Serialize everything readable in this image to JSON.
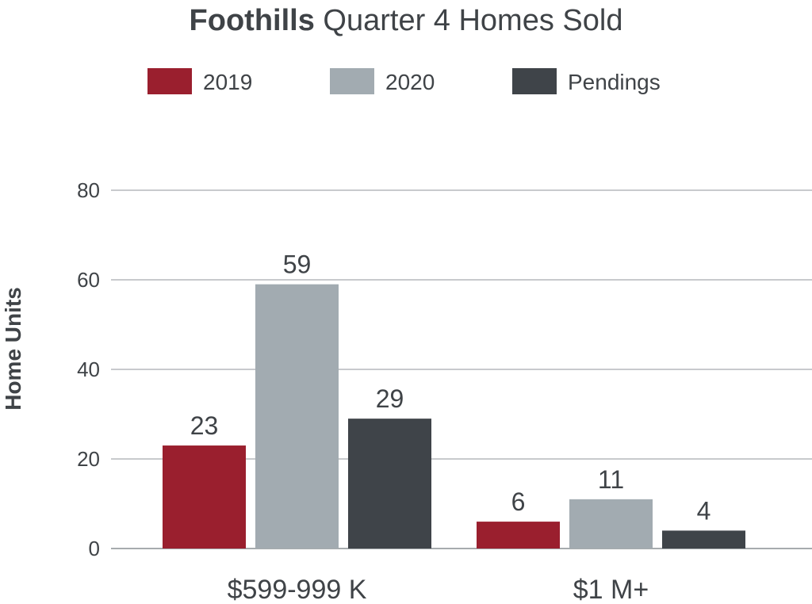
{
  "chart_data": {
    "type": "bar",
    "title_bold": "Foothills",
    "title_rest": " Quarter 4 Homes Sold",
    "ylabel": "Home Units",
    "xlabel": "",
    "ylim": [
      0,
      80
    ],
    "yticks": [
      "0",
      "20",
      "40",
      "60",
      "80"
    ],
    "grid": true,
    "legend_position": "top",
    "categories": [
      "$599-999 K",
      "$1 M+"
    ],
    "series": [
      {
        "name": "2019",
        "color": "#9a1f2e",
        "values": [
          23,
          6
        ]
      },
      {
        "name": "2020",
        "color": "#a2abb1",
        "values": [
          59,
          11
        ]
      },
      {
        "name": "Pendings",
        "color": "#3f4449",
        "values": [
          29,
          4
        ]
      }
    ]
  }
}
